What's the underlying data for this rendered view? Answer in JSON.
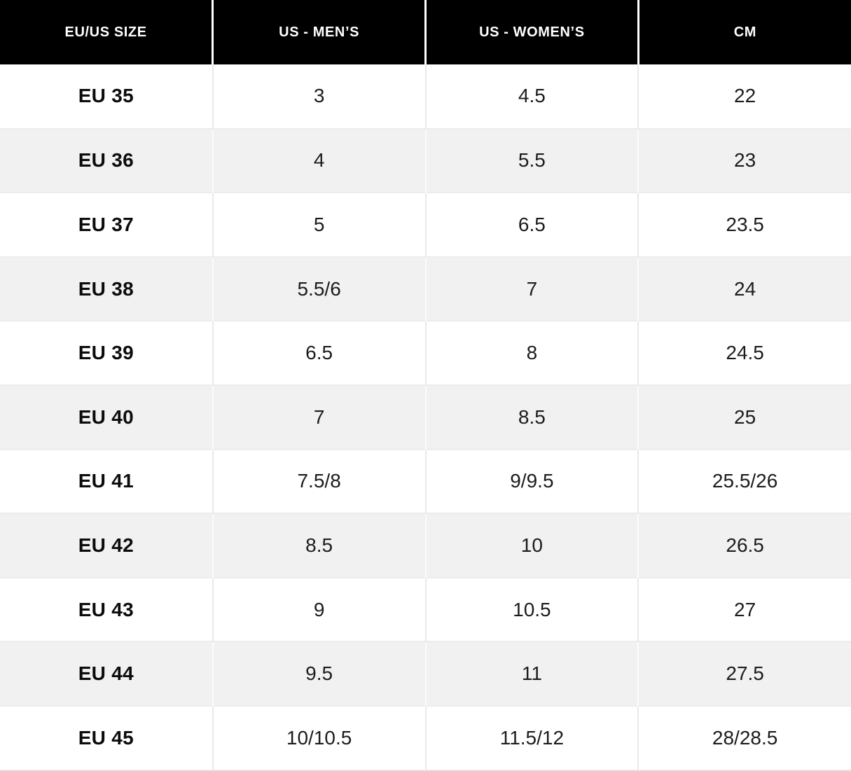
{
  "chart_data": {
    "type": "table",
    "columns": [
      "EU/US SIZE",
      "US - MEN’S",
      "US - WOMEN’S",
      "CM"
    ],
    "rows": [
      [
        "EU 35",
        "3",
        "4.5",
        "22"
      ],
      [
        "EU 36",
        "4",
        "5.5",
        "23"
      ],
      [
        "EU 37",
        "5",
        "6.5",
        "23.5"
      ],
      [
        "EU 38",
        "5.5/6",
        "7",
        "24"
      ],
      [
        "EU 39",
        "6.5",
        "8",
        "24.5"
      ],
      [
        "EU 40",
        "7",
        "8.5",
        "25"
      ],
      [
        "EU 41",
        "7.5/8",
        "9/9.5",
        "25.5/26"
      ],
      [
        "EU 42",
        "8.5",
        "10",
        "26.5"
      ],
      [
        "EU 43",
        "9",
        "10.5",
        "27"
      ],
      [
        "EU 44",
        "9.5",
        "11",
        "27.5"
      ],
      [
        "EU 45",
        "10/10.5",
        "11.5/12",
        "28/28.5"
      ]
    ],
    "layout": {
      "header_position": "top",
      "zebra_striping": true,
      "grid": "light vertical and horizontal separators"
    }
  },
  "colors": {
    "header_bg": "#000000",
    "header_text": "#ffffff",
    "row_bg": "#ffffff",
    "row_alt_bg": "#f1f1f2",
    "grid_line": "#e9e9e9",
    "cell_text": "#1c1c1c"
  }
}
